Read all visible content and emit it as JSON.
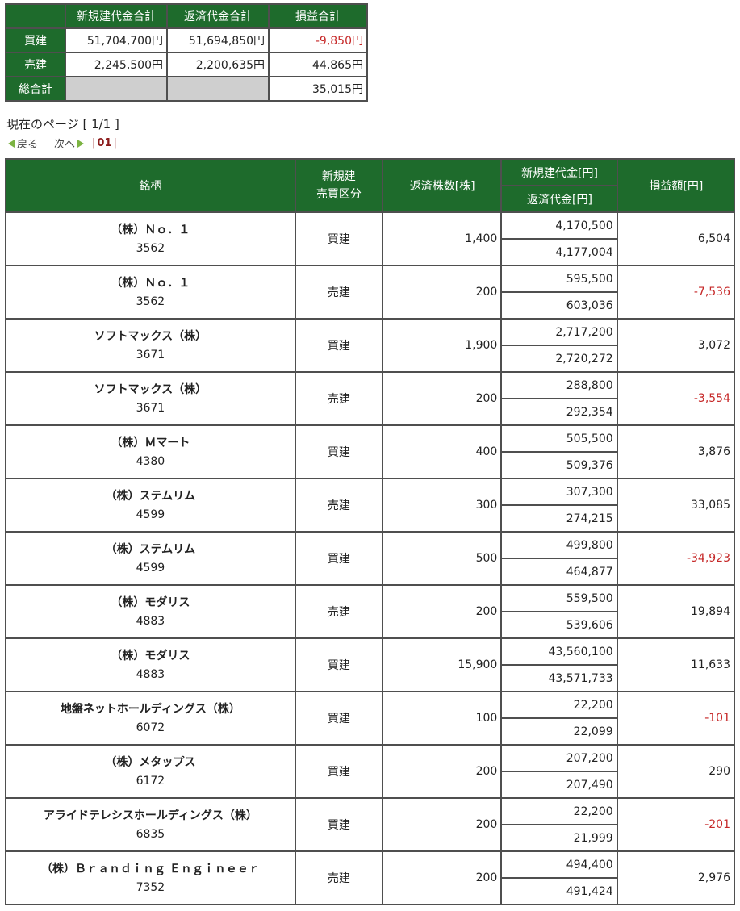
{
  "summary": {
    "headers": [
      "新規建代金合計",
      "返済代金合計",
      "損益合計"
    ],
    "rows": [
      {
        "label": "買建",
        "new_total": "51,704,700円",
        "close_total": "51,694,850円",
        "pl": "-9,850円",
        "pl_negative": true
      },
      {
        "label": "売建",
        "new_total": "2,245,500円",
        "close_total": "2,200,635円",
        "pl": "44,865円",
        "pl_negative": false
      }
    ],
    "grand": {
      "label": "総合計",
      "pl": "35,015円"
    }
  },
  "page_info": "現在のページ [ 1/1 ]",
  "pager": {
    "prev": "戻る",
    "next": "次へ",
    "sep_left": "|",
    "current": "01",
    "sep_right": "|"
  },
  "table": {
    "headers": {
      "name": "銘柄",
      "side_line1": "新規建",
      "side_line2": "売買区分",
      "qty": "返済株数[株]",
      "new_amount": "新規建代金[円]",
      "close_amount": "返済代金[円]",
      "pl": "損益額[円]"
    },
    "rows": [
      {
        "name": "（株）Ｎｏ．１",
        "code": "3562",
        "side": "買建",
        "qty": "1,400",
        "new_amount": "4,170,500",
        "close_amount": "4,177,004",
        "pl": "6,504",
        "negative": false
      },
      {
        "name": "（株）Ｎｏ．１",
        "code": "3562",
        "side": "売建",
        "qty": "200",
        "new_amount": "595,500",
        "close_amount": "603,036",
        "pl": "-7,536",
        "negative": true
      },
      {
        "name": "ソフトマックス（株）",
        "code": "3671",
        "side": "買建",
        "qty": "1,900",
        "new_amount": "2,717,200",
        "close_amount": "2,720,272",
        "pl": "3,072",
        "negative": false
      },
      {
        "name": "ソフトマックス（株）",
        "code": "3671",
        "side": "売建",
        "qty": "200",
        "new_amount": "288,800",
        "close_amount": "292,354",
        "pl": "-3,554",
        "negative": true
      },
      {
        "name": "（株）Ｍマート",
        "code": "4380",
        "side": "買建",
        "qty": "400",
        "new_amount": "505,500",
        "close_amount": "509,376",
        "pl": "3,876",
        "negative": false
      },
      {
        "name": "（株）ステムリム",
        "code": "4599",
        "side": "売建",
        "qty": "300",
        "new_amount": "307,300",
        "close_amount": "274,215",
        "pl": "33,085",
        "negative": false
      },
      {
        "name": "（株）ステムリム",
        "code": "4599",
        "side": "買建",
        "qty": "500",
        "new_amount": "499,800",
        "close_amount": "464,877",
        "pl": "-34,923",
        "negative": true
      },
      {
        "name": "（株）モダリス",
        "code": "4883",
        "side": "売建",
        "qty": "200",
        "new_amount": "559,500",
        "close_amount": "539,606",
        "pl": "19,894",
        "negative": false
      },
      {
        "name": "（株）モダリス",
        "code": "4883",
        "side": "買建",
        "qty": "15,900",
        "new_amount": "43,560,100",
        "close_amount": "43,571,733",
        "pl": "11,633",
        "negative": false
      },
      {
        "name": "地盤ネットホールディングス（株）",
        "code": "6072",
        "side": "買建",
        "qty": "100",
        "new_amount": "22,200",
        "close_amount": "22,099",
        "pl": "-101",
        "negative": true
      },
      {
        "name": "（株）メタップス",
        "code": "6172",
        "side": "買建",
        "qty": "200",
        "new_amount": "207,200",
        "close_amount": "207,490",
        "pl": "290",
        "negative": false
      },
      {
        "name": "アライドテレシスホールディングス（株）",
        "code": "6835",
        "side": "買建",
        "qty": "200",
        "new_amount": "22,200",
        "close_amount": "21,999",
        "pl": "-201",
        "negative": true
      },
      {
        "name": "（株）Ｂｒａｎｄｉｎｇ Ｅｎｇｉｎｅｅｒ",
        "code": "7352",
        "side": "売建",
        "qty": "200",
        "new_amount": "494,400",
        "close_amount": "491,424",
        "pl": "2,976",
        "negative": false
      }
    ]
  },
  "colors": {
    "header_green": "#1e6b2c",
    "negative_red": "#c62828",
    "pager_arrow": "#7cb342"
  }
}
